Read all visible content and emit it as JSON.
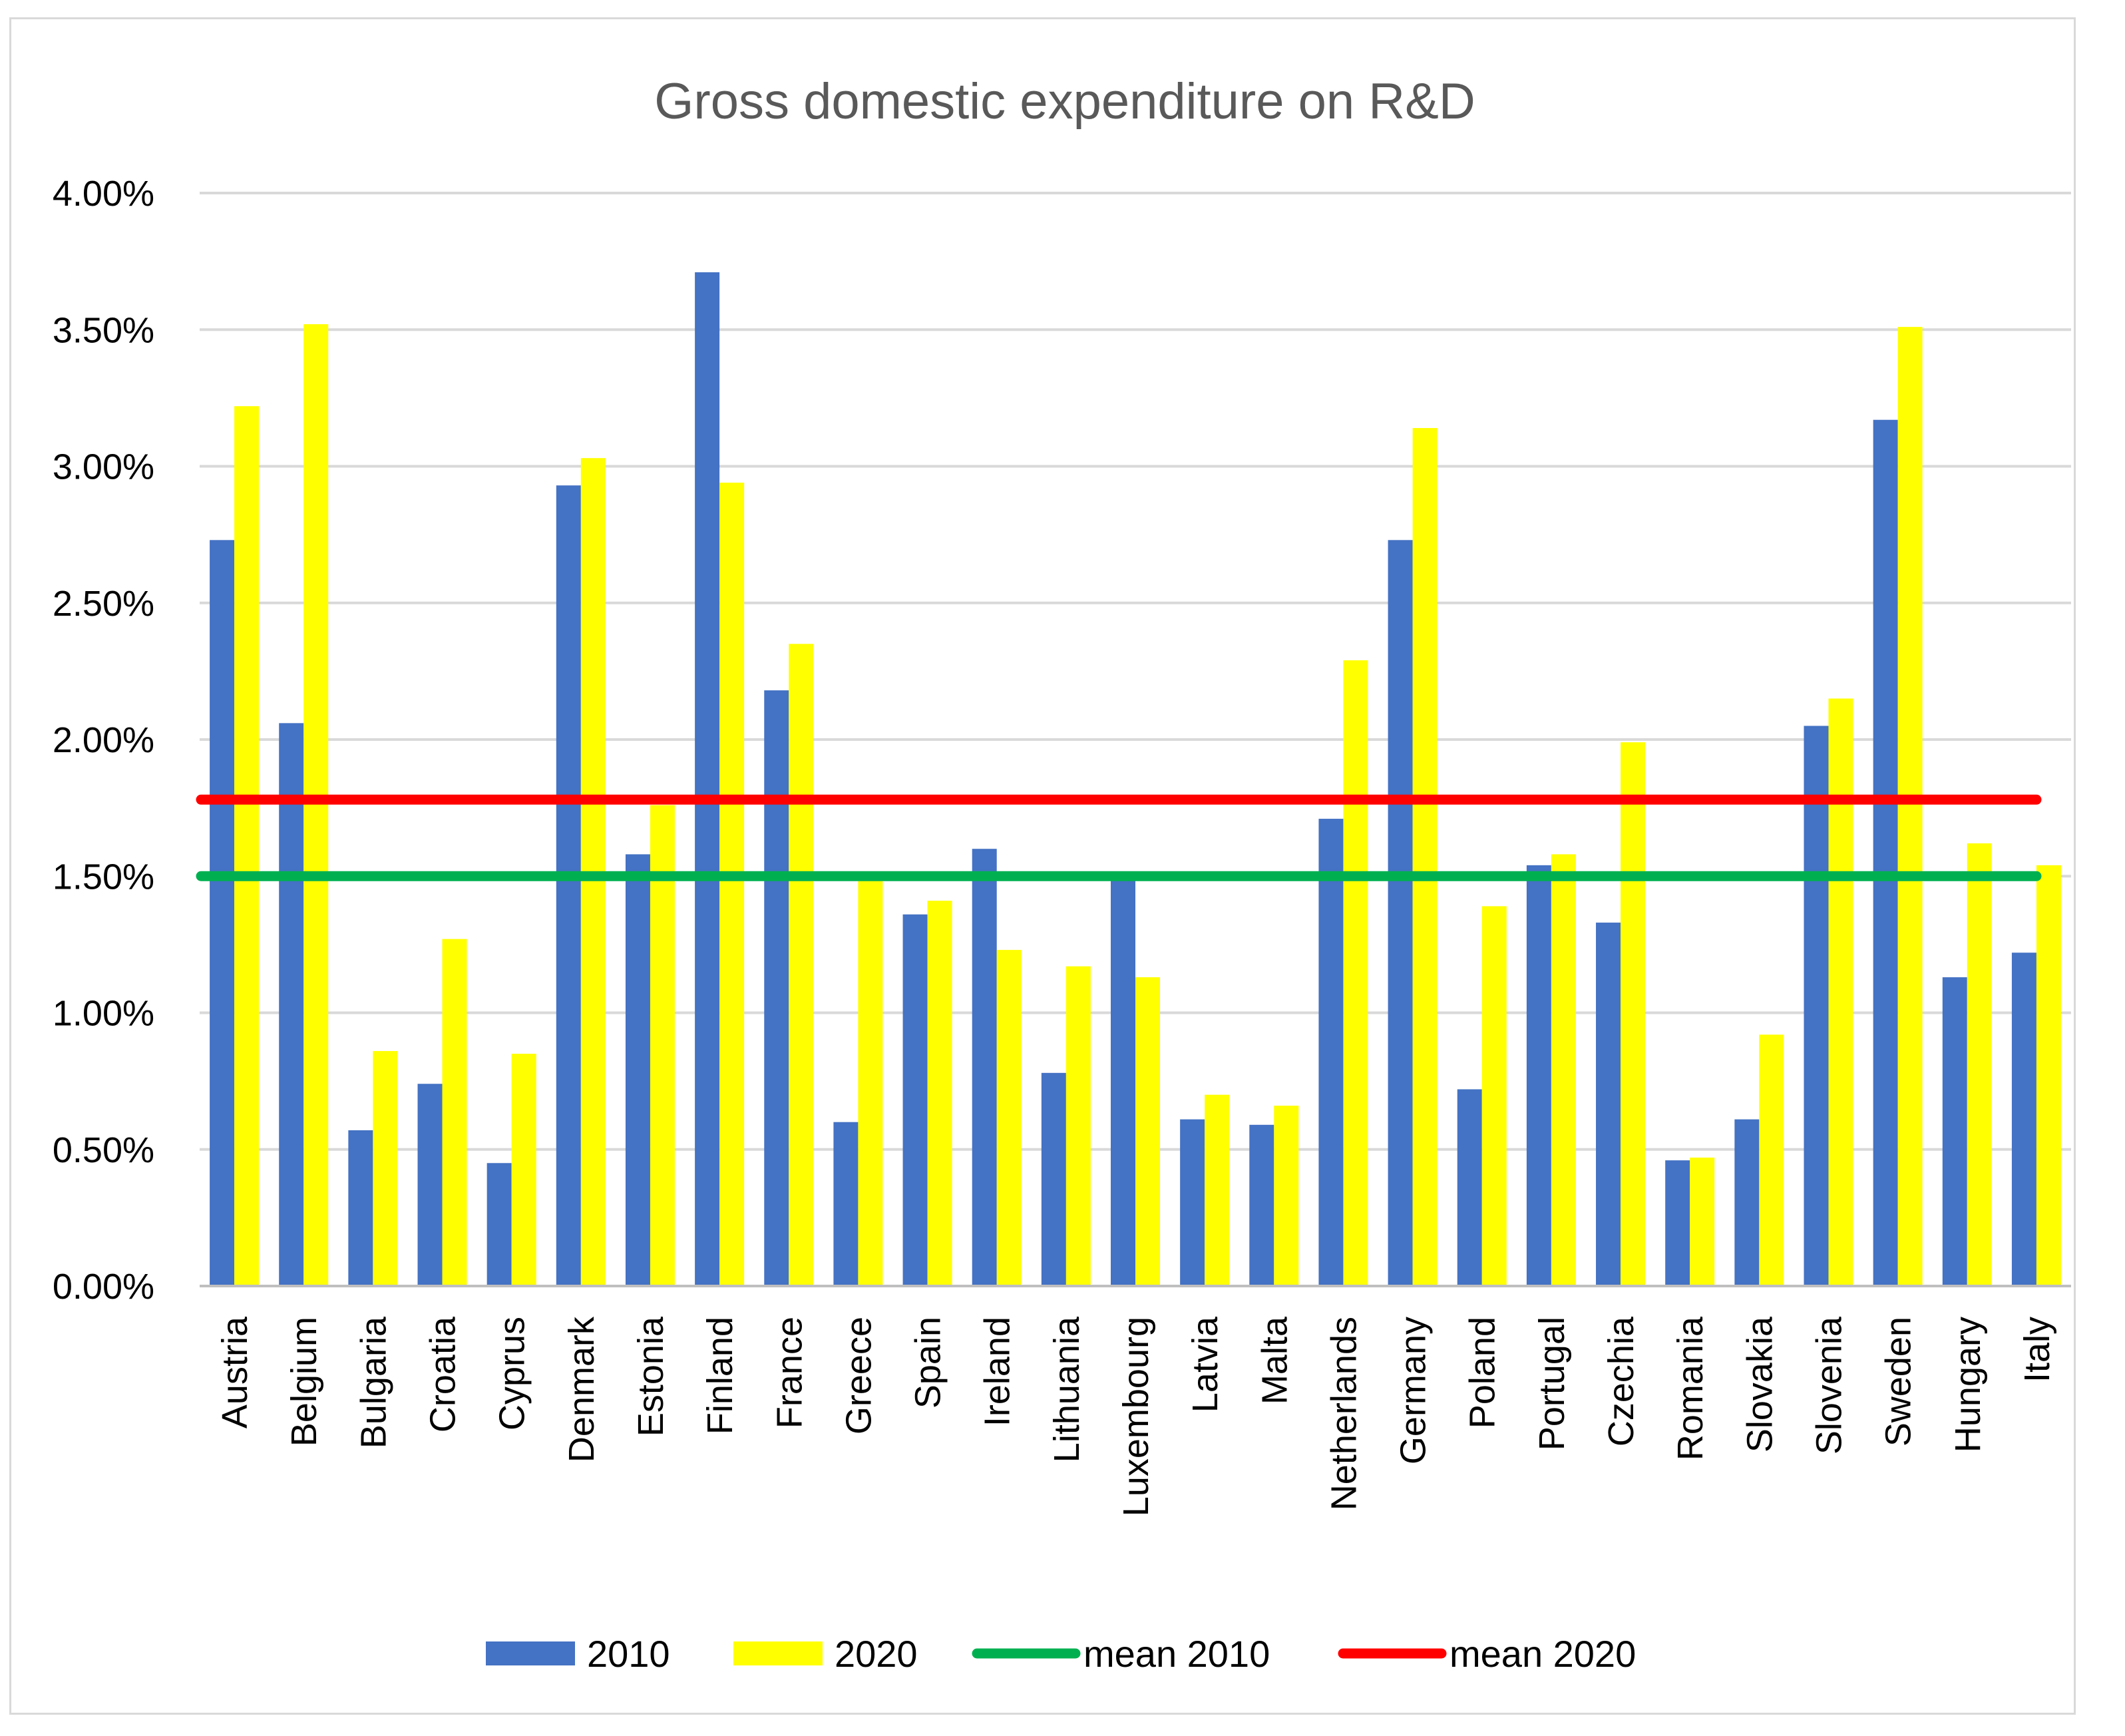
{
  "chart_data": {
    "type": "bar",
    "title": "Gross domestic expenditure on R&D",
    "xlabel": "",
    "ylabel": "",
    "ylim": [
      0,
      0.04
    ],
    "y_ticks": [
      0,
      0.005,
      0.01,
      0.015,
      0.02,
      0.025,
      0.03,
      0.035,
      0.04
    ],
    "y_tick_labels": [
      "0.00%",
      "0.50%",
      "1.00%",
      "1.50%",
      "2.00%",
      "2.50%",
      "3.00%",
      "3.50%",
      "4.00%"
    ],
    "grid": true,
    "legend_position": "bottom",
    "categories": [
      "Austria",
      "Belgium",
      "Bulgaria",
      "Croatia",
      "Cyprus",
      "Denmark",
      "Estonia",
      "Finland",
      "France",
      "Greece",
      "Spain",
      "Ireland",
      "Lithuania",
      "Luxembourg",
      "Latvia",
      "Malta",
      "Netherlands",
      "Germany",
      "Poland",
      "Portugal",
      "Czechia",
      "Romania",
      "Slovakia",
      "Slovenia",
      "Sweden",
      "Hungary",
      "Italy"
    ],
    "series": [
      {
        "name": "2010",
        "color": "#4472c4",
        "values": [
          0.0273,
          0.0206,
          0.0057,
          0.0074,
          0.0045,
          0.0293,
          0.0158,
          0.0371,
          0.0218,
          0.006,
          0.0136,
          0.016,
          0.0078,
          0.015,
          0.0061,
          0.0059,
          0.0171,
          0.0273,
          0.0072,
          0.0154,
          0.0133,
          0.0046,
          0.0061,
          0.0205,
          0.0317,
          0.0113,
          0.0122
        ]
      },
      {
        "name": "2020",
        "color": "#ffff00",
        "values": [
          0.0322,
          0.0352,
          0.0086,
          0.0127,
          0.0085,
          0.0303,
          0.0176,
          0.0294,
          0.0235,
          0.015,
          0.0141,
          0.0123,
          0.0117,
          0.0113,
          0.007,
          0.0066,
          0.0229,
          0.0314,
          0.0139,
          0.0158,
          0.0199,
          0.0047,
          0.0092,
          0.0215,
          0.0351,
          0.0162,
          0.0154
        ]
      }
    ],
    "reference_lines": [
      {
        "name": "mean 2010",
        "color": "#00b050",
        "value": 0.015
      },
      {
        "name": "mean 2020",
        "color": "#ff0000",
        "value": 0.0178
      }
    ]
  }
}
